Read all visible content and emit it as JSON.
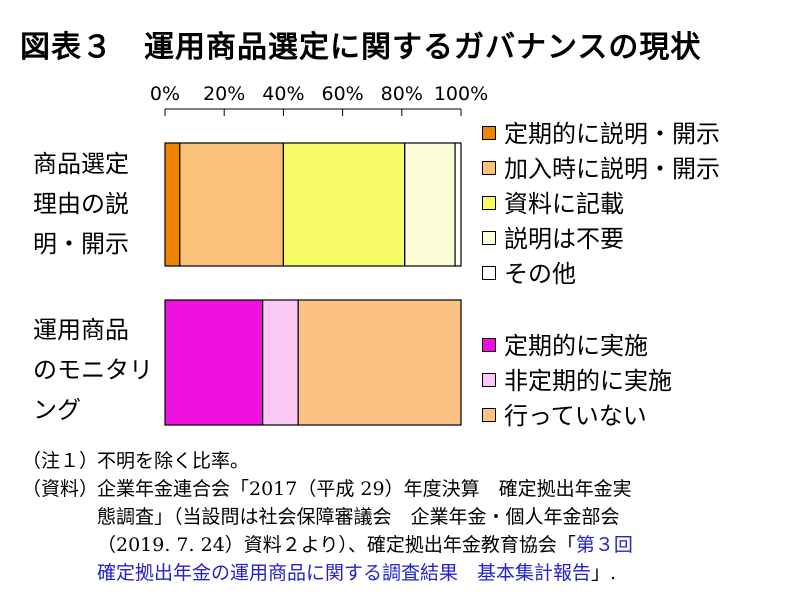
{
  "title": "図表３　運用商品選定に関するガバナンスの現状",
  "colors": {
    "orange": "#f08300",
    "light_orange": "#fbc17a",
    "yellow": "#f6fb66",
    "pale_yellow": "#fdfdd8",
    "white": "#ffffff",
    "magenta": "#ee11dd",
    "pink": "#fbc8f6",
    "peach": "#fbc383"
  },
  "chart_data": {
    "type": "bar",
    "orientation": "horizontal",
    "stacked": true,
    "xlim": [
      0,
      100
    ],
    "x_ticks": [
      "0%",
      "20%",
      "40%",
      "60%",
      "80%",
      "100%"
    ],
    "grid": false,
    "legend_position": "right",
    "groups": [
      {
        "category_lines": [
          "商品選定",
          "理由の説",
          "明・開示"
        ],
        "series": [
          {
            "name": "定期的に説明・開示",
            "value": 5,
            "color": "#f08300"
          },
          {
            "name": "加入時に説明・開示",
            "value": 35,
            "color": "#fbc17a"
          },
          {
            "name": "資料に記載",
            "value": 41,
            "color": "#f6fb66"
          },
          {
            "name": "説明は不要",
            "value": 17,
            "color": "#fdfdd8"
          },
          {
            "name": "その他",
            "value": 2,
            "color": "#ffffff"
          }
        ]
      },
      {
        "category_lines": [
          "運用商品",
          "のモニタリ",
          "ング"
        ],
        "series": [
          {
            "name": "定期的に実施",
            "value": 33,
            "color": "#ee11dd"
          },
          {
            "name": "非定期的に実施",
            "value": 12,
            "color": "#fbc8f6"
          },
          {
            "name": "行っていない",
            "value": 55,
            "color": "#fbc383"
          }
        ]
      }
    ]
  },
  "notes": {
    "note1_label": "（注１）",
    "note1_text": "不明を除く比率。",
    "source_label": "（資料）",
    "source_line1": "企業年金連合会「2017（平成 29）年度決算　確定拠出年金実",
    "source_line2": "態調査」（当設問は社会保障審議会　企業年金・個人年金部会",
    "source_line3_a": "（2019. 7. 24）資料２より）、確定拠出年金教育協会「",
    "source_line3_link": "第３回",
    "source_line4_link": "確定拠出年金の運用商品に関する調査結果　基本集計報告",
    "source_line4_end": "」."
  }
}
